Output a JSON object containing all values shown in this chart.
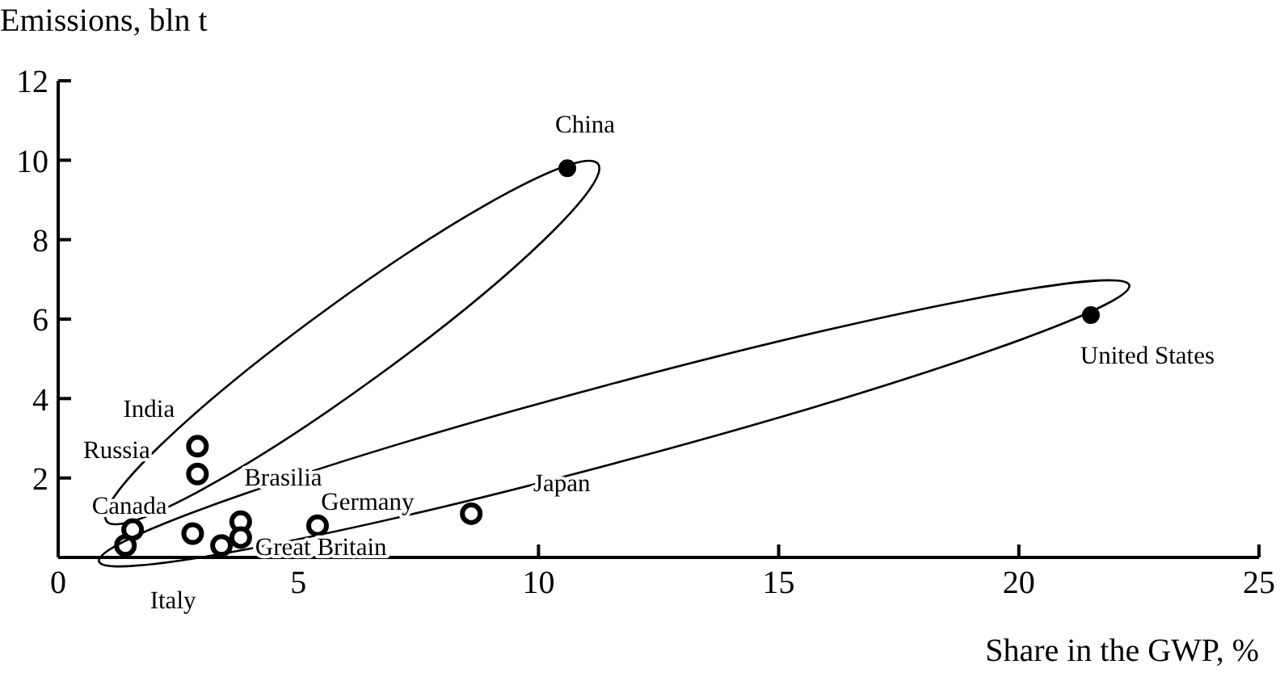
{
  "chart_data": {
    "type": "scatter",
    "xlabel": "Share in the GWP, %",
    "ylabel": "Emissions, bln t",
    "xlim": [
      0,
      25
    ],
    "xticks": [
      0,
      5,
      10,
      15,
      20,
      25
    ],
    "ylim": [
      0,
      12
    ],
    "yticks": [
      2,
      4,
      6,
      8,
      10,
      12
    ],
    "grid": false,
    "legend": false,
    "marker": "circle",
    "series": [
      {
        "color": "#000000",
        "x": [
          10.6,
          21.5
        ],
        "values": [
          9.8,
          6.1
        ]
      },
      {
        "color": "#000000",
        "x": [
          2.9,
          2.9,
          1.55,
          1.4,
          2.8,
          3.4,
          3.8,
          3.8,
          5.4,
          8.6
        ],
        "values": [
          2.8,
          2.1,
          0.7,
          0.3,
          0.6,
          0.3,
          0.9,
          0.5,
          0.8,
          1.1
        ]
      }
    ],
    "annotations": [
      {
        "text": "China",
        "x": 10.6,
        "y": 9.8
      },
      {
        "text": "United States",
        "x": 21.5,
        "y": 6.1
      },
      {
        "text": "Japan",
        "x": 8.6,
        "y": 1.1
      },
      {
        "text": "India",
        "x": 2.9,
        "y": 2.8
      },
      {
        "text": "Russia",
        "x": 2.9,
        "y": 2.1
      },
      {
        "text": "Brasilia",
        "x": 2.9,
        "y": 2.1
      },
      {
        "text": "Canada",
        "x": 1.55,
        "y": 0.7
      },
      {
        "text": "Germany",
        "x": 5.4,
        "y": 0.8
      },
      {
        "text": "Great Britain",
        "x": 3.8,
        "y": 0.5
      },
      {
        "text": "Italy",
        "x": 3.4,
        "y": 0.3
      }
    ]
  }
}
